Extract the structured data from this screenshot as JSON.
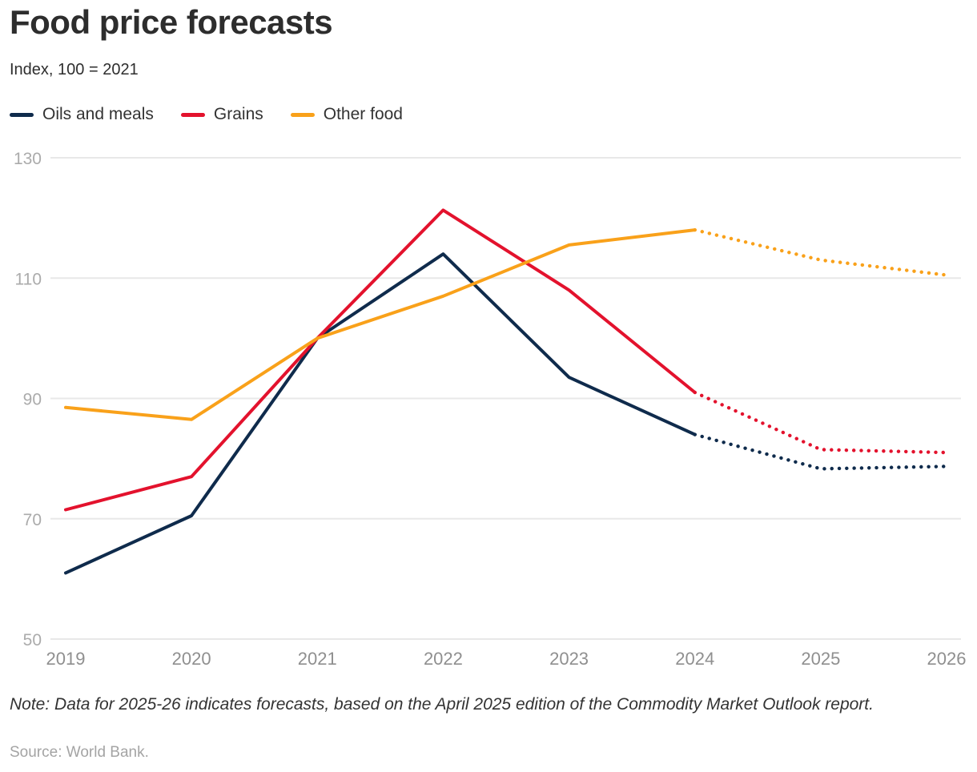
{
  "title": "Food price forecasts",
  "subtitle": "Index, 100 = 2021",
  "legend": [
    {
      "label": "Oils and meals",
      "color": "#0f2b4c"
    },
    {
      "label": "Grains",
      "color": "#e3122d"
    },
    {
      "label": "Other food",
      "color": "#f9a11a"
    }
  ],
  "note": "Note: Data for 2025-26 indicates forecasts, based on the April 2025 edition of the Commodity Market Outlook report.",
  "source": "Source: World Bank.",
  "colors": {
    "oils_and_meals": "#0f2b4c",
    "grains": "#e3122d",
    "other_food": "#f9a11a",
    "gridline": "#e8e8e8"
  },
  "chart_data": {
    "type": "line",
    "title": "Food price forecasts",
    "subtitle": "Index, 100 = 2021",
    "x": [
      2019,
      2020,
      2021,
      2022,
      2023,
      2024,
      2025,
      2026
    ],
    "series": [
      {
        "name": "Oils and meals",
        "color": "#0f2b4c",
        "values": [
          61,
          70.5,
          100,
          114,
          93.5,
          84,
          78.3,
          78.7
        ],
        "forecast_from": 2024
      },
      {
        "name": "Grains",
        "color": "#e3122d",
        "values": [
          71.5,
          77,
          100,
          121.3,
          108,
          91,
          81.5,
          81
        ],
        "forecast_from": 2024
      },
      {
        "name": "Other food",
        "color": "#f9a11a",
        "values": [
          88.5,
          86.5,
          100,
          107,
          115.5,
          118,
          113,
          110.5
        ],
        "forecast_from": 2024
      }
    ],
    "ylim": [
      50,
      130
    ],
    "yticks": [
      50,
      70,
      90,
      110,
      130
    ],
    "xticks": [
      2019,
      2020,
      2021,
      2022,
      2023,
      2024,
      2025,
      2026
    ],
    "grid": true,
    "legend_position": "top",
    "forecast_style": "dotted",
    "forecast_note_years": "2025-26"
  }
}
